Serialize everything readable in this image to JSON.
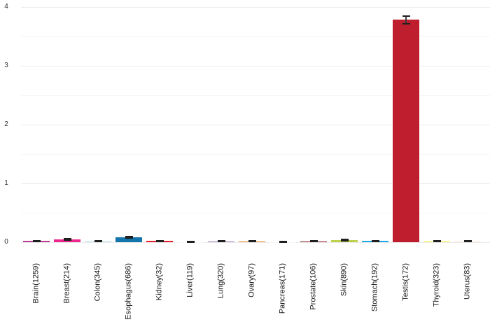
{
  "chart_data": {
    "type": "bar",
    "title": "",
    "xlabel": "",
    "ylabel": "",
    "ylim": [
      0,
      4
    ],
    "yticks": [
      0,
      1,
      2,
      3,
      4
    ],
    "minor_grid_step": 0.5,
    "grid": "horizontal major and minor, no axis lines",
    "legend": "none",
    "background": "#ffffff",
    "major_grid_color": "#ebebeb",
    "minor_grid_color": "#f6f6f6",
    "tick_label_color": "#333333",
    "error_bar_color": "#1f1f1f",
    "categories": [
      "Brain(1259)",
      "Breast(214)",
      "Colon(345)",
      "Esophagus(686)",
      "Kidney(32)",
      "Liver(119)",
      "Lung(320)",
      "Ovary(97)",
      "Pancreas(171)",
      "Prostate(106)",
      "Skin(890)",
      "Stomach(192)",
      "Testis(172)",
      "Thyroid(323)",
      "Uterus(83)"
    ],
    "values": [
      0.02,
      0.05,
      0.015,
      0.085,
      0.02,
      0.005,
      0.015,
      0.015,
      0.005,
      0.015,
      0.035,
      0.02,
      3.78,
      0.015,
      0.015
    ],
    "errors": [
      0.008,
      0.012,
      0.008,
      0.012,
      0.008,
      0.006,
      0.008,
      0.008,
      0.006,
      0.01,
      0.01,
      0.008,
      0.07,
      0.006,
      0.008
    ],
    "colors": [
      "#bd3b94",
      "#ec268d",
      "#a8d8ef",
      "#1474ac",
      "#e8202d",
      "#faf7f5",
      "#9e80c5",
      "#e2861d",
      "#f7f6f5",
      "#8c1c20",
      "#bed04c",
      "#1aabe3",
      "#be1e2d",
      "#f8ee20",
      "#f9e2d9"
    ]
  }
}
